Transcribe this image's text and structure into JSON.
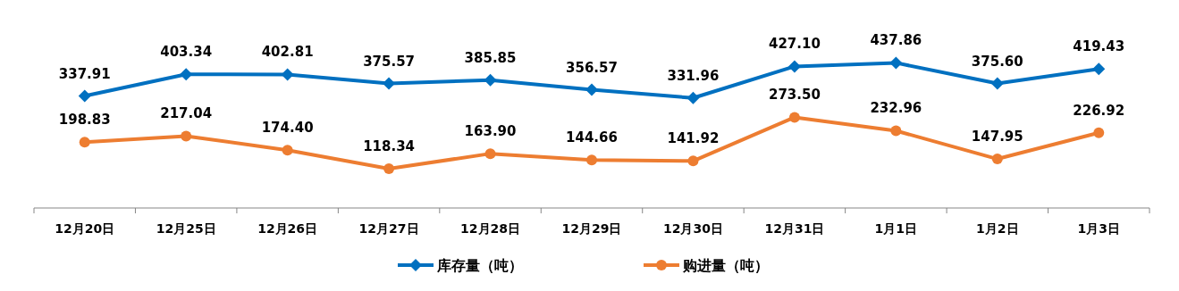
{
  "chart_data": {
    "type": "line",
    "categories": [
      "12月20日",
      "12月25日",
      "12月26日",
      "12月27日",
      "12月28日",
      "12月29日",
      "12月30日",
      "12月31日",
      "1月1日",
      "1月2日",
      "1月3日"
    ],
    "series": [
      {
        "name": "库存量（吨）",
        "color": "#0070c0",
        "marker": "diamond",
        "values": [
          337.91,
          403.34,
          402.81,
          375.57,
          385.85,
          356.57,
          331.96,
          427.1,
          437.86,
          375.6,
          419.43
        ],
        "value_labels": [
          "337.91",
          "403.34",
          "402.81",
          "375.57",
          "385.85",
          "356.57",
          "331.96",
          "427.10",
          "437.86",
          "375.60",
          "419.43"
        ]
      },
      {
        "name": "购进量（吨）",
        "color": "#ed7d31",
        "marker": "circle",
        "values": [
          198.83,
          217.04,
          174.4,
          118.34,
          163.9,
          144.66,
          141.92,
          273.5,
          232.96,
          147.95,
          226.92
        ],
        "value_labels": [
          "198.83",
          "217.04",
          "174.40",
          "118.34",
          "163.90",
          "144.66",
          "141.92",
          "273.50",
          "232.96",
          "147.95",
          "226.92"
        ]
      }
    ],
    "legend": "bottom",
    "line_style": "solid"
  }
}
